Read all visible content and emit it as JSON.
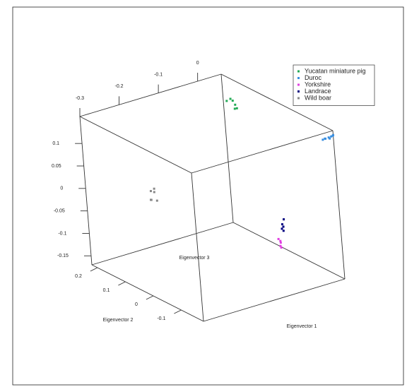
{
  "chart_data": {
    "type": "scatter3d",
    "x_label": "Eigenvector 1",
    "y_label": "Eigenvector 2",
    "z_label": "Eigenvector 3",
    "xlim": [
      -0.3,
      0.06
    ],
    "ylim": [
      -0.18,
      0.22
    ],
    "zlim": [
      -0.17,
      0.16
    ],
    "xticks": [
      -0.3,
      -0.2,
      -0.1,
      0
    ],
    "yticks": [
      0.2,
      0.1,
      0,
      -0.1
    ],
    "zticks": [
      0.1,
      0.05,
      0,
      -0.05,
      -0.1,
      -0.15
    ],
    "legend": "top-right",
    "series": [
      {
        "name": "Yucatan miniature pig",
        "color": "#22aa55",
        "x": [
          0.058,
          0.06,
          0.055,
          0.062,
          0.059,
          0.057
        ],
        "y": [
          0.19,
          0.185,
          0.2,
          0.18,
          0.17,
          0.175
        ],
        "z": [
          0.115,
          0.112,
          0.108,
          0.104,
          0.1,
          0.098
        ]
      },
      {
        "name": "Duroc",
        "color": "#3a8fe0",
        "x": [
          0.05,
          0.055,
          0.058,
          0.06,
          0.052,
          0.056,
          0.048,
          0.06
        ],
        "y": [
          -0.165,
          -0.17,
          -0.175,
          -0.178,
          -0.16,
          -0.172,
          -0.158,
          -0.18
        ],
        "z": [
          0.14,
          0.143,
          0.146,
          0.148,
          0.138,
          0.141,
          0.136,
          0.15
        ]
      },
      {
        "name": "Yorkshire",
        "color": "#e040e0",
        "x": [
          -0.066,
          -0.064,
          -0.068,
          -0.065,
          -0.067
        ],
        "y": [
          -0.14,
          -0.138,
          -0.142,
          -0.14,
          -0.135
        ],
        "z": [
          -0.065,
          -0.07,
          -0.075,
          -0.08,
          -0.062
        ]
      },
      {
        "name": "Landrace",
        "color": "#000080",
        "x": [
          -0.058,
          -0.057,
          -0.059,
          -0.056,
          -0.04
        ],
        "y": [
          -0.14,
          -0.142,
          -0.139,
          -0.14,
          -0.12
        ],
        "z": [
          -0.03,
          -0.035,
          -0.04,
          -0.045,
          -0.03
        ]
      },
      {
        "name": "Wild boar",
        "color": "#888888",
        "x": [
          -0.245,
          -0.24,
          -0.235,
          -0.248,
          -0.242,
          -0.238
        ],
        "y": [
          0.06,
          0.055,
          0.062,
          0.058,
          0.065,
          0.05
        ],
        "z": [
          0.03,
          0.028,
          0.032,
          0.012,
          0.008,
          0.01
        ]
      }
    ]
  }
}
